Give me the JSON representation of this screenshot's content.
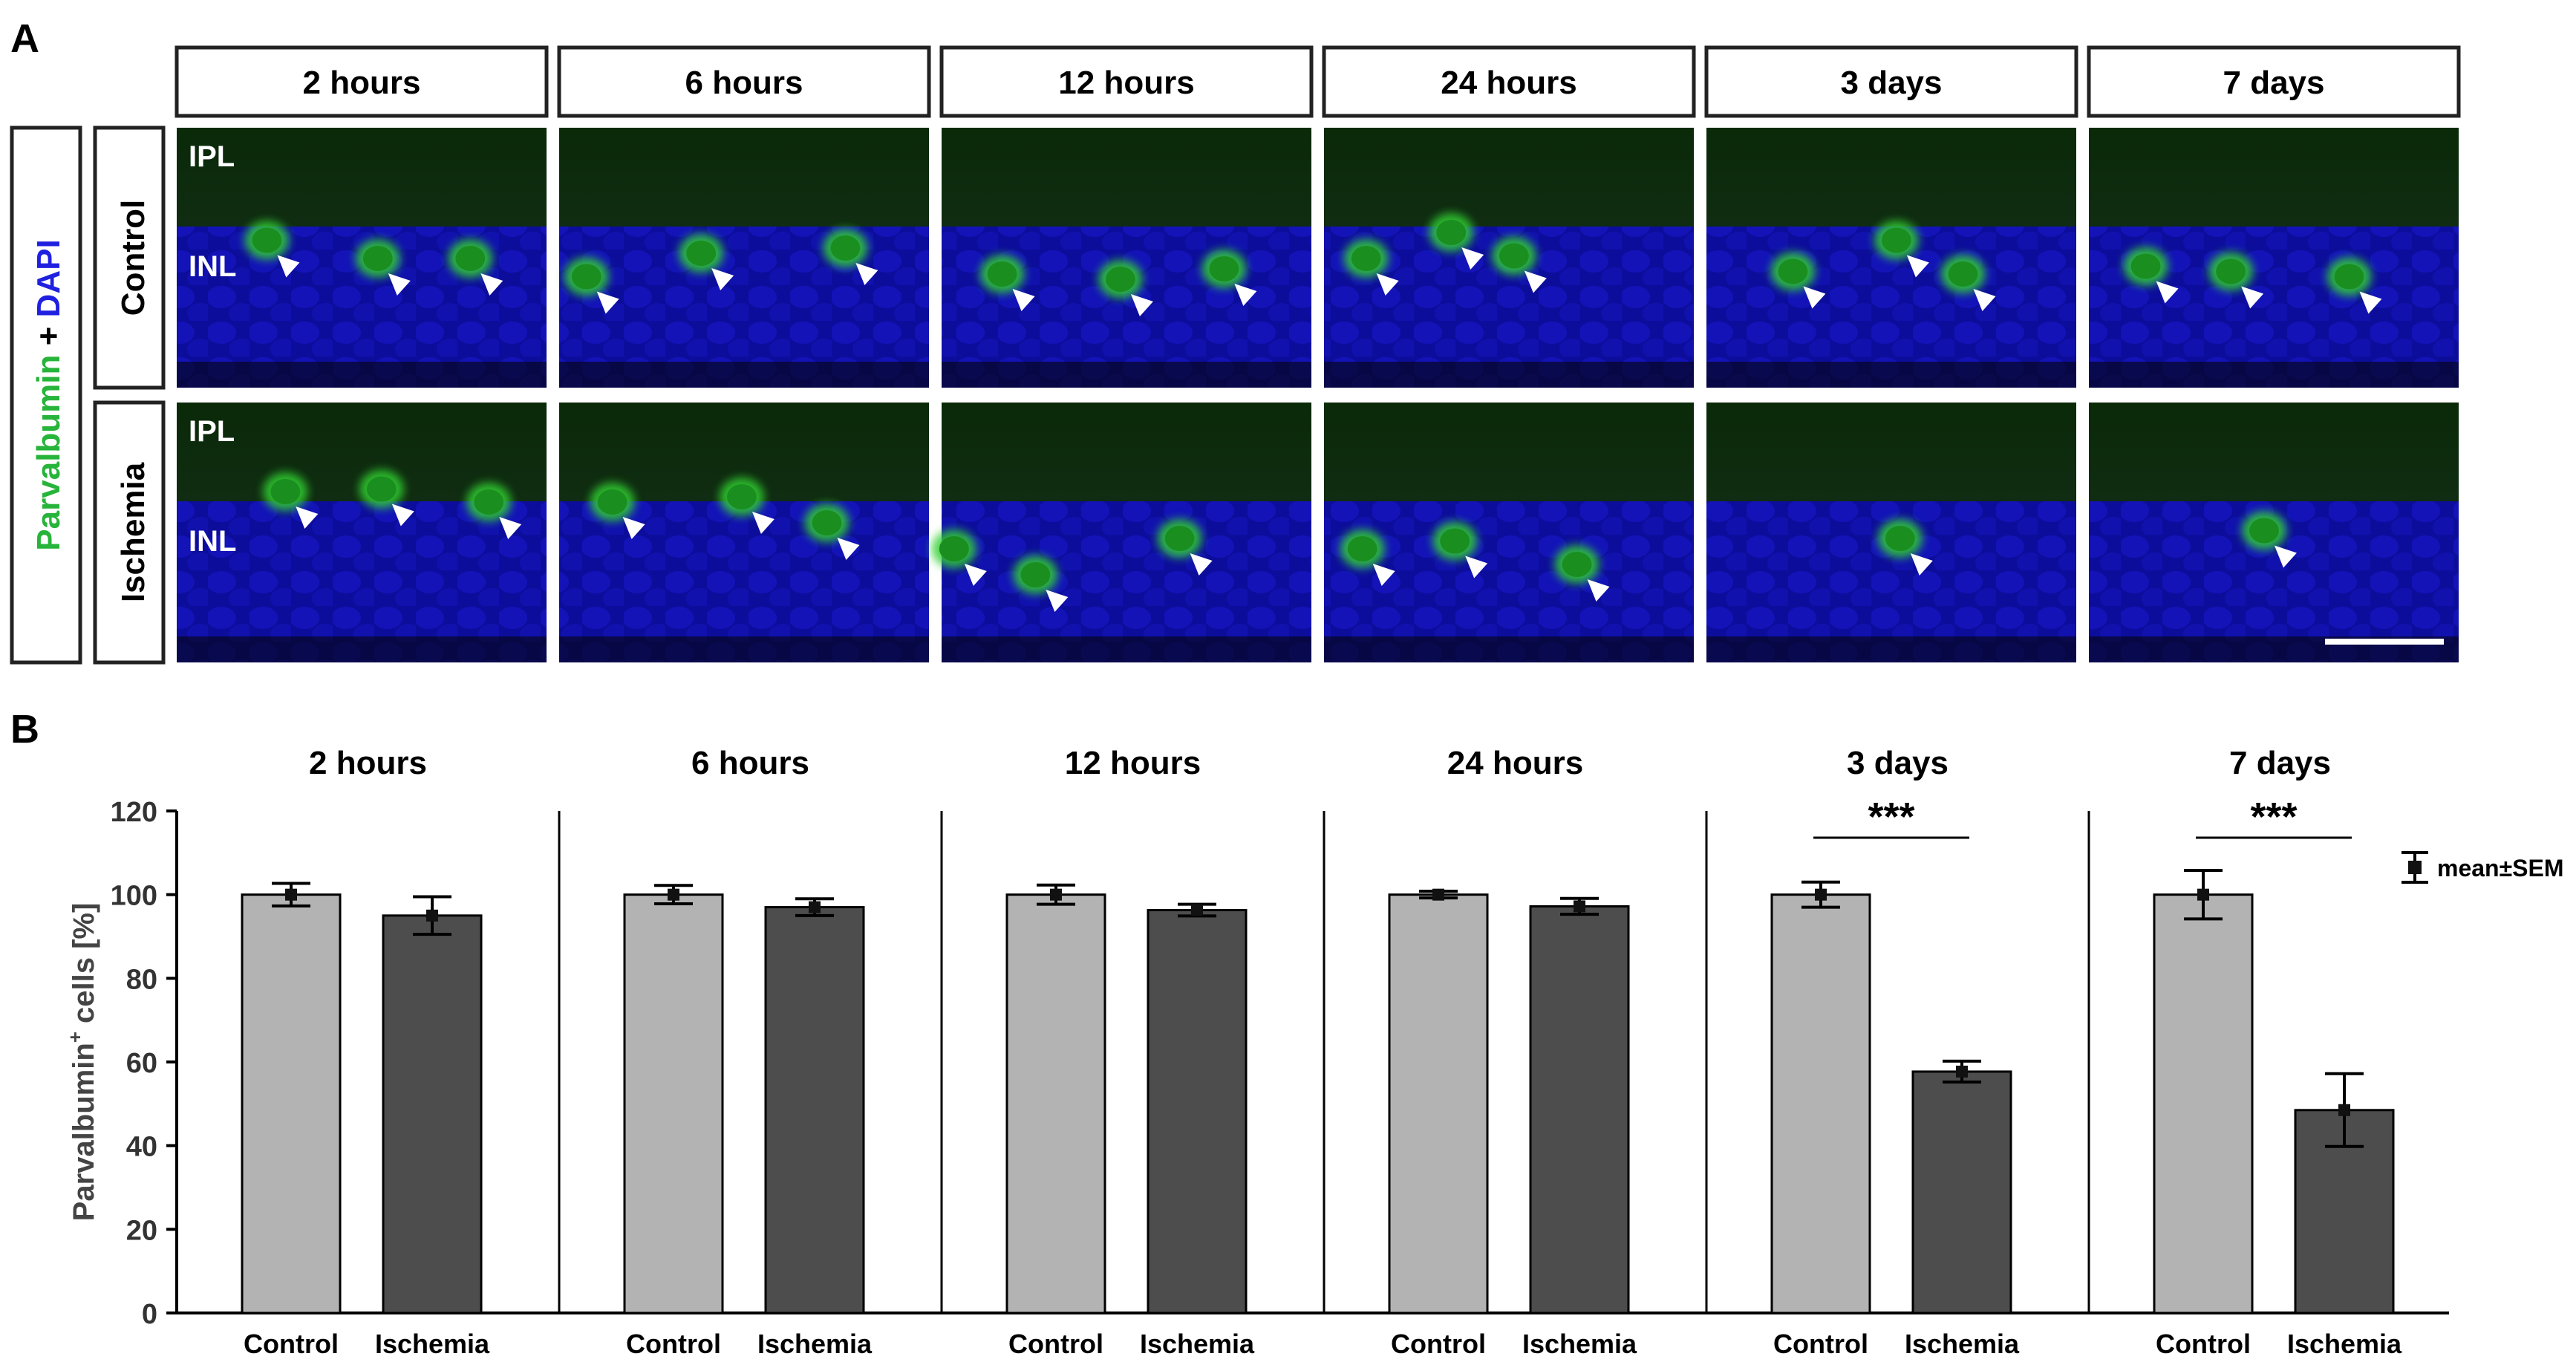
{
  "panel_labels": {
    "a": "A",
    "b": "B"
  },
  "timepoints": [
    "2 hours",
    "6 hours",
    "12 hours",
    "24 hours",
    "3 days",
    "7 days"
  ],
  "panel_a": {
    "stain": {
      "marker": "Parvalbumin",
      "plus": " + ",
      "counterstain": "DAPI"
    },
    "rows": [
      {
        "label": "Control",
        "layer_top": "IPL",
        "layer_bottom": "INL"
      },
      {
        "label": "Ischemia",
        "layer_top": "IPL",
        "layer_bottom": "INL"
      }
    ],
    "arrowheads": [
      [
        [
          0.3,
          0.53
        ],
        [
          0.6,
          0.6
        ],
        [
          0.85,
          0.6
        ]
      ],
      [
        [
          0.13,
          0.67
        ],
        [
          0.44,
          0.58
        ],
        [
          0.83,
          0.56
        ]
      ],
      [
        [
          0.22,
          0.66
        ],
        [
          0.54,
          0.68
        ],
        [
          0.82,
          0.64
        ]
      ],
      [
        [
          0.17,
          0.6
        ],
        [
          0.4,
          0.5
        ],
        [
          0.57,
          0.59
        ]
      ],
      [
        [
          0.29,
          0.65
        ],
        [
          0.57,
          0.53
        ],
        [
          0.75,
          0.66
        ]
      ],
      [
        [
          0.21,
          0.63
        ],
        [
          0.44,
          0.65
        ],
        [
          0.76,
          0.67
        ]
      ],
      [
        [
          0.35,
          0.44
        ],
        [
          0.61,
          0.43
        ],
        [
          0.9,
          0.48
        ]
      ],
      [
        [
          0.2,
          0.48
        ],
        [
          0.55,
          0.46
        ],
        [
          0.78,
          0.56
        ]
      ],
      [
        [
          0.09,
          0.66
        ],
        [
          0.31,
          0.76
        ],
        [
          0.7,
          0.62
        ]
      ],
      [
        [
          0.16,
          0.66
        ],
        [
          0.41,
          0.63
        ],
        [
          0.74,
          0.72
        ]
      ],
      [
        [
          0.58,
          0.62
        ]
      ],
      [
        [
          0.53,
          0.59
        ]
      ]
    ]
  },
  "chart_data": {
    "type": "bar",
    "ylabel_main": "Parvalbumin",
    "ylabel_sup": "+",
    "ylabel_rest": " cells [%]",
    "ylim": [
      0,
      120
    ],
    "yticks": [
      0,
      20,
      40,
      60,
      80,
      100,
      120
    ],
    "categories": [
      "Control",
      "Ischemia"
    ],
    "colors": {
      "control": "#b3b3b3",
      "ischemia": "#4d4d4d"
    },
    "series": [
      {
        "group": "2 hours",
        "control": {
          "mean": 100,
          "sem": 2.7
        },
        "ischemia": {
          "mean": 95,
          "sem": 4.5
        },
        "sig": ""
      },
      {
        "group": "6 hours",
        "control": {
          "mean": 100,
          "sem": 2.2
        },
        "ischemia": {
          "mean": 97,
          "sem": 2.0
        },
        "sig": ""
      },
      {
        "group": "12 hours",
        "control": {
          "mean": 100,
          "sem": 2.3
        },
        "ischemia": {
          "mean": 96.3,
          "sem": 1.4
        },
        "sig": ""
      },
      {
        "group": "24 hours",
        "control": {
          "mean": 100,
          "sem": 0.8
        },
        "ischemia": {
          "mean": 97.2,
          "sem": 1.9
        },
        "sig": ""
      },
      {
        "group": "3 days",
        "control": {
          "mean": 100,
          "sem": 3.0
        },
        "ischemia": {
          "mean": 57.7,
          "sem": 2.5
        },
        "sig": "***"
      },
      {
        "group": "7 days",
        "control": {
          "mean": 100,
          "sem": 5.8
        },
        "ischemia": {
          "mean": 48.5,
          "sem": 8.7
        },
        "sig": "***"
      }
    ],
    "legend": {
      "label": "mean±SEM",
      "position": "right"
    }
  }
}
